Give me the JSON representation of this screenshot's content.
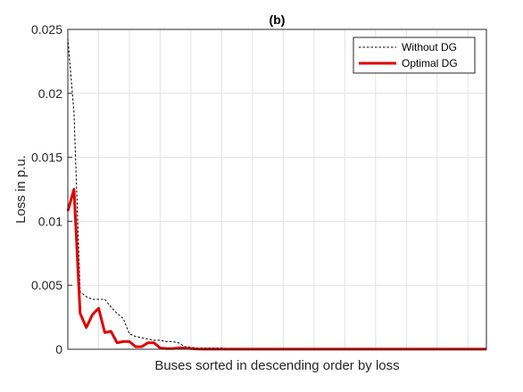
{
  "chart_data": {
    "type": "line",
    "title": "(b)",
    "xlabel": "Buses sorted in descending order by loss",
    "ylabel": "Loss in p.u.",
    "xlim": [
      1,
      69
    ],
    "ylim": [
      0,
      0.025
    ],
    "y_ticks": [
      0,
      0.005,
      0.01,
      0.015,
      0.02,
      0.025
    ],
    "y_tick_labels": [
      "0",
      "0.005",
      "0.01",
      "0.015",
      "0.02",
      "0.025"
    ],
    "x_tick_labels_shown": false,
    "x_gridlines": [
      6,
      11,
      16,
      21,
      26,
      31,
      36,
      41,
      46,
      51,
      56,
      61,
      66
    ],
    "grid": true,
    "legend_position": "top-right",
    "series": [
      {
        "name": "Without DG",
        "color": "#000000",
        "style": "dotted",
        "x": [
          1,
          2,
          3,
          4,
          5,
          6,
          7,
          8,
          9,
          10,
          11,
          12,
          13,
          14,
          15,
          16,
          17,
          18,
          19,
          20,
          21,
          22,
          23,
          24,
          25,
          26,
          27,
          28,
          29,
          30,
          31,
          32,
          33,
          34,
          35,
          36,
          37,
          38,
          39,
          40,
          41,
          42,
          43,
          44,
          45,
          46,
          47,
          48,
          49,
          50,
          51,
          52,
          53,
          54,
          55,
          56,
          57,
          58,
          59,
          60,
          61,
          62,
          63,
          64,
          65,
          66,
          67,
          68,
          69
        ],
        "y": [
          0.0243,
          0.0185,
          0.0045,
          0.0041,
          0.0039,
          0.0039,
          0.0039,
          0.0033,
          0.0028,
          0.0024,
          0.0012,
          0.001,
          0.0009,
          0.0008,
          0.0007,
          0.0007,
          0.0006,
          0.0006,
          0.0005,
          0.0002,
          0.00015,
          0.0001,
          0.0001,
          0.0001,
          0.0001,
          0.0001,
          5e-05,
          5e-05,
          5e-05,
          5e-05,
          5e-05,
          3e-05,
          3e-05,
          3e-05,
          2e-05,
          2e-05,
          2e-05,
          2e-05,
          2e-05,
          2e-05,
          1e-05,
          1e-05,
          1e-05,
          1e-05,
          1e-05,
          1e-05,
          1e-05,
          1e-05,
          1e-05,
          1e-05,
          1e-05,
          1e-05,
          1e-05,
          1e-05,
          1e-05,
          1e-05,
          1e-05,
          1e-05,
          1e-05,
          1e-05,
          1e-05,
          1e-05,
          1e-05,
          1e-05,
          1e-05,
          1e-05,
          1e-05,
          1e-05,
          1e-05
        ]
      },
      {
        "name": "Optimal DG",
        "color": "#e00000",
        "style": "solid",
        "x": [
          1,
          2,
          3,
          4,
          5,
          6,
          7,
          8,
          9,
          10,
          11,
          12,
          13,
          14,
          15,
          16,
          17,
          18,
          19,
          20,
          21,
          22,
          23,
          24,
          25,
          26,
          27,
          28,
          29,
          30,
          31,
          32,
          33,
          34,
          35,
          36,
          37,
          38,
          39,
          40,
          41,
          42,
          43,
          44,
          45,
          46,
          47,
          48,
          49,
          50,
          51,
          52,
          53,
          54,
          55,
          56,
          57,
          58,
          59,
          60,
          61,
          62,
          63,
          64,
          65,
          66,
          67,
          68,
          69
        ],
        "y": [
          0.0108,
          0.0125,
          0.0028,
          0.0017,
          0.0027,
          0.0032,
          0.0013,
          0.0014,
          0.0005,
          0.0006,
          0.0006,
          0.0002,
          0.0002,
          0.0005,
          0.0005,
          0.0001,
          5e-05,
          5e-05,
          0.0001,
          0.0001,
          5e-05,
          2e-05,
          1e-05,
          1e-05,
          1e-05,
          1e-05,
          1e-05,
          1e-05,
          1e-05,
          1e-05,
          1e-05,
          1e-05,
          1e-05,
          1e-05,
          1e-05,
          1e-05,
          1e-05,
          1e-05,
          1e-05,
          1e-05,
          1e-05,
          1e-05,
          1e-05,
          1e-05,
          1e-05,
          1e-05,
          1e-05,
          1e-05,
          1e-05,
          1e-05,
          1e-05,
          1e-05,
          1e-05,
          1e-05,
          1e-05,
          1e-05,
          1e-05,
          1e-05,
          1e-05,
          1e-05,
          1e-05,
          1e-05,
          1e-05,
          1e-05,
          1e-05,
          1e-05,
          1e-05,
          1e-05,
          1e-05
        ]
      }
    ]
  }
}
